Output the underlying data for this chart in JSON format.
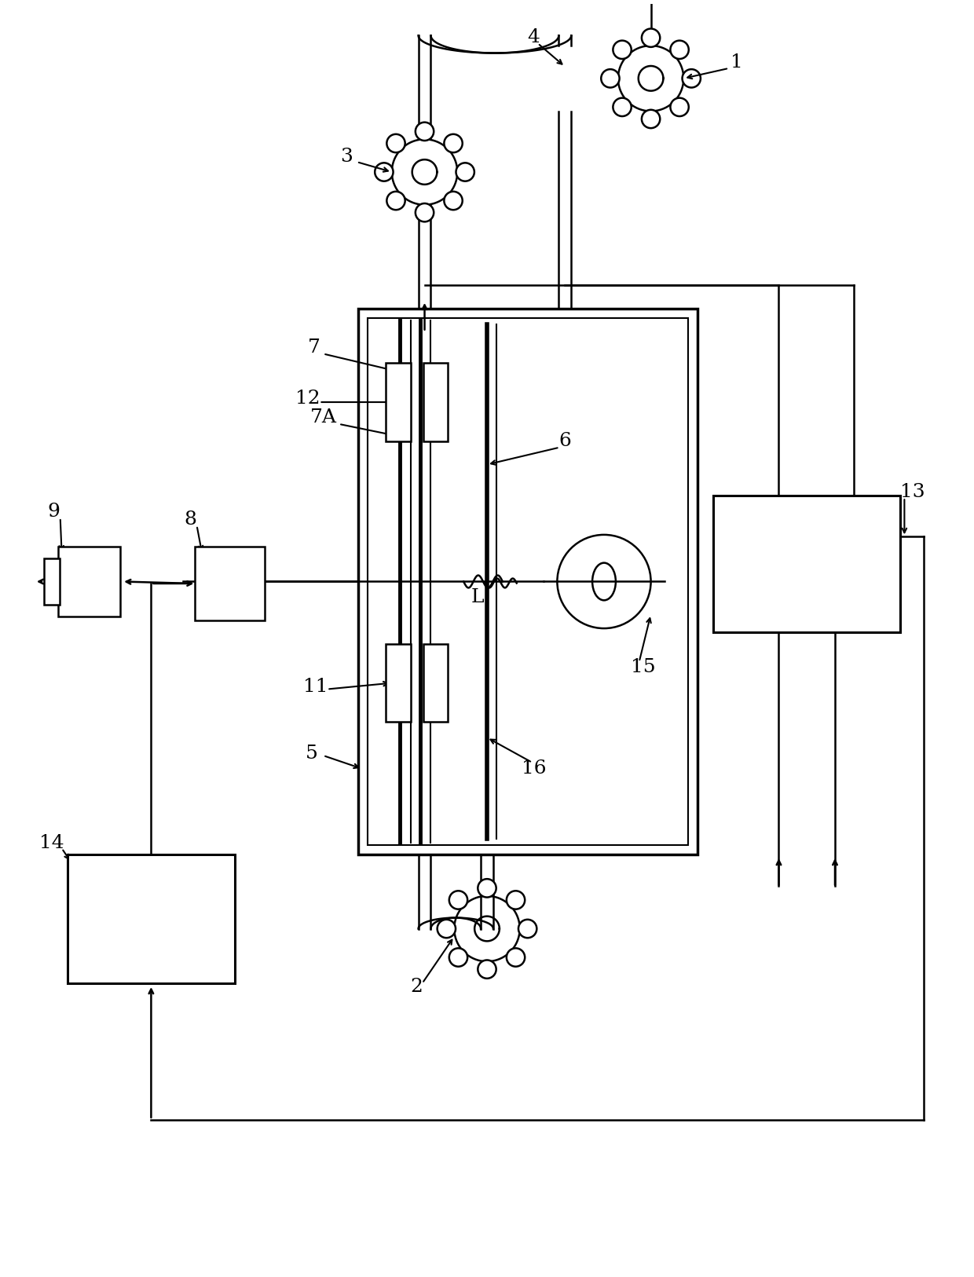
{
  "bg_color": "#ffffff",
  "line_color": "#000000",
  "fig_width": 12.4,
  "fig_height": 16.26,
  "dpi": 100
}
